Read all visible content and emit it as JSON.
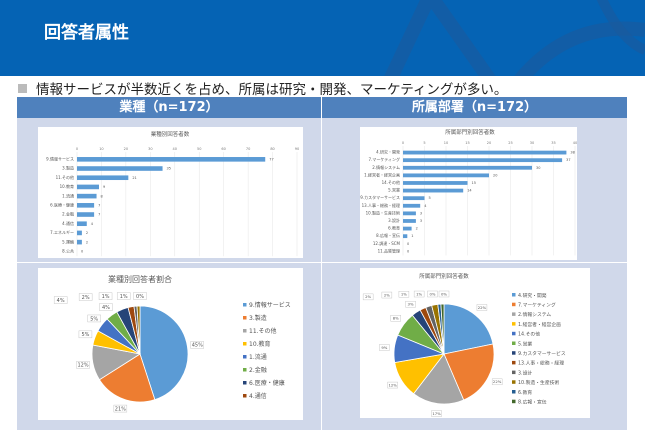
{
  "header": {
    "title": "回答者属性"
  },
  "summary": "情報サービスが半数近くを占め、所属は研究・開発、マーケティングが多い。",
  "columns": [
    "業種（n=172）",
    "所属部署（n=172）"
  ],
  "colors": {
    "header": "#0563b4",
    "table_header": "#4f81bd",
    "body_bg": "#d0d8ea",
    "bar": "#5b9bd5"
  },
  "chart_data": [
    {
      "type": "bar",
      "orientation": "horizontal",
      "title": "業種別回答者数",
      "xlim": [
        0,
        90
      ],
      "ticks": [
        0,
        10,
        20,
        30,
        40,
        50,
        60,
        70,
        80,
        90
      ],
      "grid": true,
      "categories": [
        "9.情報サービス",
        "3.製造",
        "11.その他",
        "10.教育",
        "1.流通",
        "6.医療・健康",
        "2.金融",
        "4.通信",
        "7.エネルギー",
        "5.運輸",
        "8.公共"
      ],
      "values": [
        77,
        35,
        21,
        9,
        8,
        7,
        7,
        4,
        2,
        2,
        0
      ]
    },
    {
      "type": "bar",
      "orientation": "horizontal",
      "title": "所属部門別回答者数",
      "xlim": [
        0,
        40
      ],
      "ticks": [
        0,
        5,
        10,
        15,
        20,
        25,
        30,
        35,
        40
      ],
      "grid": true,
      "categories": [
        "4.研究・開発",
        "7.マーケティング",
        "2.情報システム",
        "1.経営者・経営企画",
        "14.その他",
        "5.営業",
        "9.カスタマーサービス",
        "13.人事・総務・経理",
        "10.製造・生産技術",
        "3.設計",
        "6.教育",
        "8.広報・宣伝",
        "12.調達・SCM",
        "11.品質管理"
      ],
      "values": [
        38,
        37,
        30,
        20,
        15,
        14,
        5,
        4,
        3,
        3,
        2,
        1,
        0,
        0
      ]
    },
    {
      "type": "pie",
      "title": "業種別回答者割合",
      "legend": "right",
      "categories": [
        "9.情報サービス",
        "3.製造",
        "11.その他",
        "10.教育",
        "1.流通",
        "2.金融",
        "6.医療・健康",
        "4.通信",
        "7.エネルギー",
        "5.運輸",
        "8.公共"
      ],
      "values": [
        45,
        21,
        12,
        5,
        5,
        4,
        4,
        2,
        1,
        1,
        0
      ],
      "labels": [
        "45%",
        "21%",
        "12%",
        "5%",
        "5%",
        "4%",
        "4%",
        "2%",
        "1%",
        "1%",
        "0%"
      ],
      "legend_entries": [
        "9.情報サービス",
        "3.製造",
        "11.その他",
        "10.教育",
        "1.流通",
        "2.金融",
        "6.医療・健康",
        "4.通信"
      ],
      "colors": [
        "#5b9bd5",
        "#ed7d31",
        "#a5a5a5",
        "#ffc000",
        "#4472c4",
        "#70ad47",
        "#264478",
        "#9e480e",
        "#636363",
        "#997300",
        "#255e91"
      ]
    },
    {
      "type": "pie",
      "title": "所属部門別回答者数",
      "legend": "right",
      "categories": [
        "4.研究・開発",
        "7.マーケティング",
        "2.情報システム",
        "1.経営者・経営企画",
        "14.その他",
        "5.営業",
        "9.カスタマーサービス",
        "13.人事・総務・経理",
        "3.設計",
        "10.製造・生産技術",
        "6.教育",
        "8.広報・宣伝",
        "12.調達・SCM",
        "11.品質管理"
      ],
      "values": [
        22,
        22,
        17,
        12,
        9,
        8,
        3,
        2,
        2,
        2,
        1,
        1,
        0,
        0
      ],
      "labels": [
        "22%",
        "22%",
        "17%",
        "12%",
        "9%",
        "8%",
        "3%",
        "2%",
        "2%",
        "2%",
        "1%",
        "1%",
        "0%",
        "0%"
      ],
      "legend_entries": [
        "4.研究・開発",
        "7.マーケティング",
        "2.情報システム",
        "1.経営者・経営企画",
        "14.その他",
        "5.営業",
        "9.カスタマーサービス",
        "13.人事・総務・経理",
        "3.設計",
        "10.製造・生産技術",
        "6.教育",
        "8.広報・宣伝"
      ],
      "colors": [
        "#5b9bd5",
        "#ed7d31",
        "#a5a5a5",
        "#ffc000",
        "#4472c4",
        "#70ad47",
        "#264478",
        "#9e480e",
        "#636363",
        "#997300",
        "#255e91",
        "#43682b",
        "#698ed0",
        "#f1975a"
      ]
    }
  ]
}
